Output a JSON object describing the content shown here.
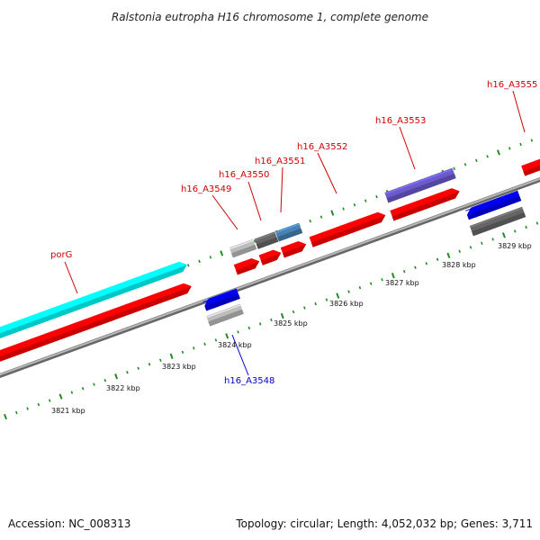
{
  "title": "Ralstonia eutropha H16 chromosome 1, complete genome",
  "footer": {
    "accession": "Accession: NC_008313",
    "topology": "Topology: circular; Length: 4,052,032 bp; Genes: 3,711"
  },
  "colors": {
    "background": "#ffffff",
    "backbone": "#8c8c8c",
    "tick_green": "#228B22",
    "label_red": "#d00000",
    "label_blue": "#0000cc",
    "feature_red": "#ff0000",
    "feature_cyan": "#00ffff",
    "feature_blue": "#0000ee",
    "feature_gray": "#666666",
    "feature_lightgray": "#bdbdbd",
    "feature_steelblue": "#4682b4",
    "feature_purple": "#6a5acd"
  },
  "scale_labels": [
    "3821 kbp",
    "3822 kbp",
    "3823 kbp",
    "3824 kbp",
    "3825 kbp",
    "3826 kbp",
    "3827 kbp",
    "3828 kbp",
    "3829 kbp"
  ],
  "gene_labels": {
    "porG": "porG",
    "h16_A3548": "h16_A3548",
    "h16_A3549": "h16_A3549",
    "h16_A3550": "h16_A3550",
    "h16_A3551": "h16_A3551",
    "h16_A3552": "h16_A3552",
    "h16_A3553": "h16_A3553",
    "h16_A3555": "h16_A3555"
  }
}
